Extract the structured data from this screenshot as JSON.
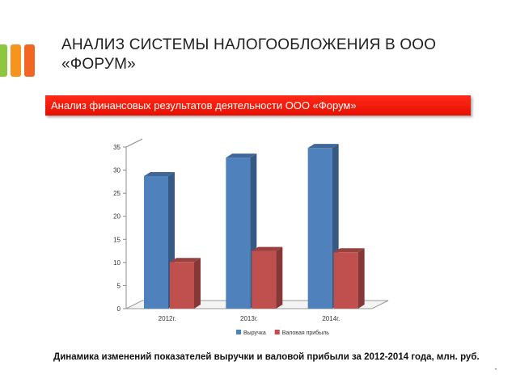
{
  "slide": {
    "title_line1": "АНАЛИЗ СИСТЕМЫ НАЛОГООБЛОЖЕНИЯ В ООО",
    "title_line2": "«ФОРУМ»",
    "banner": "Анализ финансовых результатов деятельности ООО «Форум»",
    "caption": "Динамика изменений показателей выручки и валовой прибыли за 2012-2014 года, млн. руб.",
    "page_number": "•",
    "deco_colors": [
      "#8dc63f",
      "#f7941d",
      "#f26522"
    ]
  },
  "chart_data": {
    "type": "bar",
    "categories": [
      "2012г.",
      "2013г.",
      "2014г."
    ],
    "series": [
      {
        "name": "Выручка",
        "values": [
          28.7,
          32.7,
          34.8
        ],
        "color": "#4f81bd"
      },
      {
        "name": "Валовая прибыль",
        "values": [
          10.1,
          12.5,
          12.2
        ],
        "color": "#c0504d"
      }
    ],
    "ylim": [
      0,
      35
    ],
    "yticks": [
      0,
      5,
      10,
      15,
      20,
      25,
      30,
      35
    ],
    "grid": false,
    "legend": "bottom",
    "three_d": true,
    "title": "",
    "xlabel": "",
    "ylabel": ""
  }
}
